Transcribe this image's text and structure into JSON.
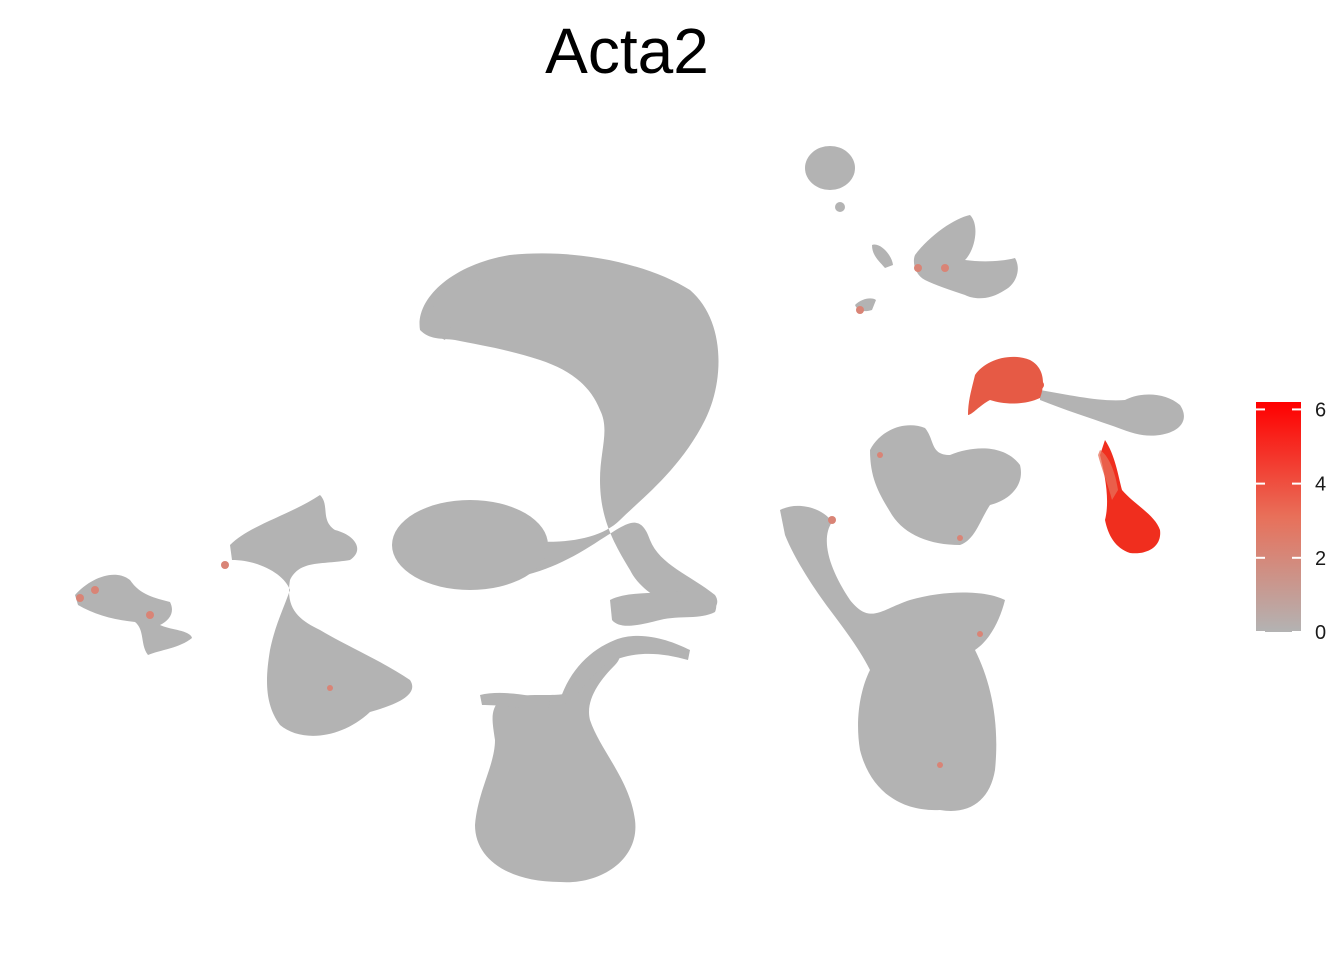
{
  "chart_data": {
    "type": "scatter",
    "title": "Acta2",
    "xlabel": "",
    "ylabel": "",
    "grid": false,
    "axes_visible": false,
    "legend": {
      "position": "right",
      "type": "colorbar",
      "range": [
        0,
        6.2
      ],
      "ticks": [
        {
          "value": 0,
          "label": "0"
        },
        {
          "value": 2,
          "label": "2"
        },
        {
          "value": 4,
          "label": "4"
        },
        {
          "value": 6,
          "label": "6"
        }
      ],
      "colors": [
        "#b3b3b3",
        "#ff0000"
      ]
    },
    "colors": {
      "low": "#b3b3b3",
      "high": "#ff0000"
    }
  }
}
